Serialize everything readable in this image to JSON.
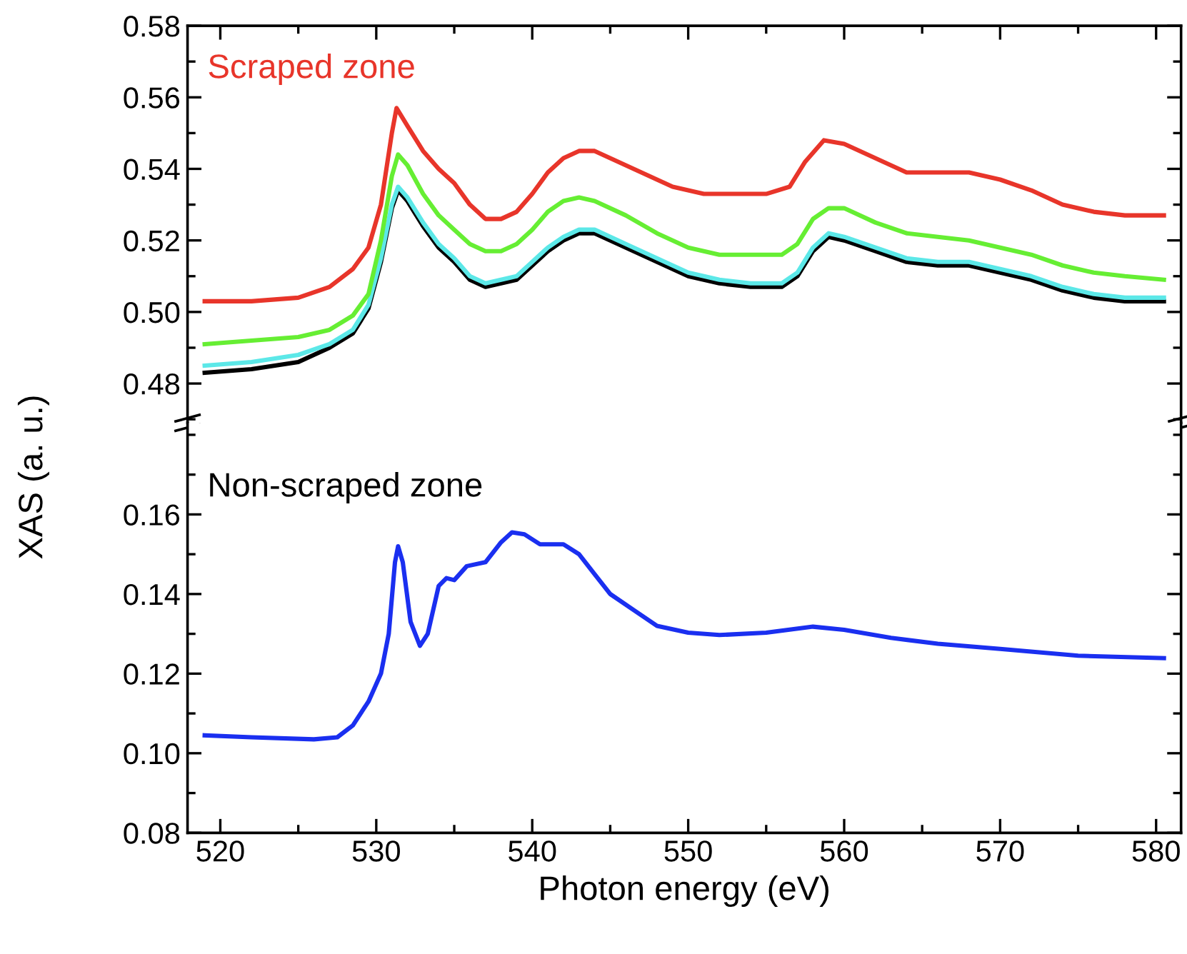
{
  "chart_data": [
    {
      "type": "line",
      "ylabel": "XAS (a. u.)",
      "annotations": [
        "Scraped zone"
      ],
      "tick_labels": "y",
      "xlim": [
        517.9,
        581.6
      ],
      "xticks": [
        520,
        530,
        540,
        550,
        560,
        570,
        580
      ],
      "ylim": [
        0.469,
        0.58
      ],
      "yticks": [
        0.48,
        {
          "value": 0.5,
          "label": "0.50"
        },
        0.52,
        0.54,
        0.56,
        0.58
      ],
      "grid": false,
      "legend": false,
      "series": [
        {
          "color": "#000000",
          "x": [
            519,
            522,
            525,
            527,
            528.5,
            529.5,
            530.3,
            531,
            531.4,
            532,
            533,
            534,
            535,
            536,
            537,
            538,
            539,
            540,
            541,
            542,
            543,
            544,
            546,
            548,
            550,
            552,
            554,
            556,
            557,
            558,
            559,
            560,
            562,
            564,
            566,
            568,
            570,
            572,
            574,
            576,
            578,
            580.5
          ],
          "values": [
            0.483,
            0.484,
            0.486,
            0.49,
            0.494,
            0.501,
            0.514,
            0.529,
            0.534,
            0.531,
            0.524,
            0.518,
            0.514,
            0.509,
            0.507,
            0.508,
            0.509,
            0.513,
            0.517,
            0.52,
            0.522,
            0.522,
            0.518,
            0.514,
            0.51,
            0.508,
            0.507,
            0.507,
            0.51,
            0.517,
            0.521,
            0.52,
            0.517,
            0.514,
            0.513,
            0.513,
            0.511,
            0.509,
            0.506,
            0.504,
            0.503,
            0.503
          ]
        },
        {
          "color": "#5ce8e8",
          "x": [
            519,
            522,
            525,
            527,
            528.5,
            529.5,
            530.3,
            531,
            531.4,
            532,
            533,
            534,
            535,
            536,
            537,
            538,
            539,
            540,
            541,
            542,
            543,
            544,
            546,
            548,
            550,
            552,
            554,
            556,
            557,
            558,
            559,
            560,
            562,
            564,
            566,
            568,
            570,
            572,
            574,
            576,
            578,
            580.5
          ],
          "values": [
            0.485,
            0.486,
            0.488,
            0.491,
            0.495,
            0.502,
            0.515,
            0.53,
            0.535,
            0.532,
            0.525,
            0.519,
            0.515,
            0.51,
            0.508,
            0.509,
            0.51,
            0.514,
            0.518,
            0.521,
            0.523,
            0.523,
            0.519,
            0.515,
            0.511,
            0.509,
            0.508,
            0.508,
            0.511,
            0.518,
            0.522,
            0.521,
            0.518,
            0.515,
            0.514,
            0.514,
            0.512,
            0.51,
            0.507,
            0.505,
            0.504,
            0.504
          ]
        },
        {
          "color": "#66ee33",
          "x": [
            519,
            522,
            525,
            527,
            528.5,
            529.5,
            530.3,
            531,
            531.4,
            532,
            533,
            534,
            535,
            536,
            537,
            538,
            539,
            540,
            541,
            542,
            543,
            544,
            546,
            548,
            550,
            552,
            554,
            556,
            557,
            558,
            559,
            560,
            562,
            564,
            566,
            568,
            570,
            572,
            574,
            576,
            578,
            580.5
          ],
          "values": [
            0.491,
            0.492,
            0.493,
            0.495,
            0.499,
            0.505,
            0.52,
            0.538,
            0.544,
            0.541,
            0.533,
            0.527,
            0.523,
            0.519,
            0.517,
            0.517,
            0.519,
            0.523,
            0.528,
            0.531,
            0.532,
            0.531,
            0.527,
            0.522,
            0.518,
            0.516,
            0.516,
            0.516,
            0.519,
            0.526,
            0.529,
            0.529,
            0.525,
            0.522,
            0.521,
            0.52,
            0.518,
            0.516,
            0.513,
            0.511,
            0.51,
            0.509
          ]
        },
        {
          "color": "#e8352a",
          "x": [
            519,
            522,
            525,
            527,
            528.5,
            529.5,
            530.3,
            531,
            531.3,
            532,
            533,
            534,
            535,
            536,
            537,
            538,
            539,
            540,
            541,
            542,
            543,
            544,
            545,
            547,
            549,
            551,
            553,
            555,
            556.5,
            557.5,
            558.7,
            560,
            562,
            564,
            566,
            568,
            570,
            572,
            574,
            576,
            578,
            580.5
          ],
          "values": [
            0.503,
            0.503,
            0.504,
            0.507,
            0.512,
            0.518,
            0.53,
            0.55,
            0.557,
            0.552,
            0.545,
            0.54,
            0.536,
            0.53,
            0.526,
            0.526,
            0.528,
            0.533,
            0.539,
            0.543,
            0.545,
            0.545,
            0.543,
            0.539,
            0.535,
            0.533,
            0.533,
            0.533,
            0.535,
            0.542,
            0.548,
            0.547,
            0.543,
            0.539,
            0.539,
            0.539,
            0.537,
            0.534,
            0.53,
            0.528,
            0.527,
            0.527
          ]
        }
      ]
    },
    {
      "type": "line",
      "xlabel": "Photon energy (eV)",
      "annotations": [
        "Non-scraped zone"
      ],
      "xlim": [
        517.9,
        581.6
      ],
      "xticks": [
        520,
        530,
        540,
        550,
        560,
        570,
        580
      ],
      "ylim": [
        0.08,
        0.183
      ],
      "yticks": [
        0.08,
        {
          "value": 0.1,
          "label": "0.10"
        },
        0.12,
        0.14,
        0.16
      ],
      "grid": false,
      "legend": false,
      "series": [
        {
          "color": "#1a2ff0",
          "x": [
            519,
            522,
            526,
            527.5,
            528.5,
            529.5,
            530.3,
            530.8,
            531.2,
            531.4,
            531.7,
            532.2,
            532.8,
            533.3,
            534,
            534.5,
            535,
            535.8,
            537,
            538,
            538.7,
            539.5,
            540.5,
            542,
            543,
            544,
            545,
            546.5,
            548,
            550,
            552,
            555,
            558,
            560,
            563,
            566,
            570,
            575,
            580.5
          ],
          "values": [
            0.1045,
            0.104,
            0.1035,
            0.104,
            0.107,
            0.113,
            0.12,
            0.13,
            0.148,
            0.152,
            0.148,
            0.133,
            0.127,
            0.13,
            0.142,
            0.144,
            0.1435,
            0.147,
            0.148,
            0.153,
            0.1555,
            0.155,
            0.1525,
            0.1525,
            0.15,
            0.145,
            0.14,
            0.136,
            0.132,
            0.1303,
            0.1297,
            0.1303,
            0.1318,
            0.131,
            0.129,
            0.1275,
            0.1262,
            0.1245,
            0.1239
          ]
        }
      ]
    }
  ]
}
